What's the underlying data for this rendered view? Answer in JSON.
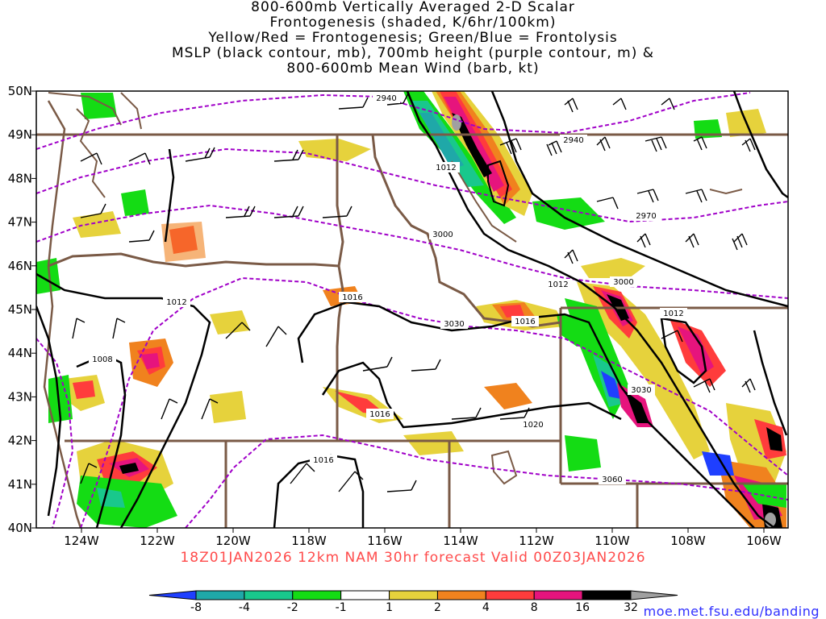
{
  "title_lines": [
    "800-600mb Vertically Averaged 2-D Scalar",
    "Frontogenesis (shaded, K/6hr/100km)",
    "Yellow/Red = Frontogenesis;  Green/Blue = Frontolysis",
    "MSLP (black contour, mb), 700mb height (purple contour, m) &",
    "800-600mb Mean Wind (barb, kt)"
  ],
  "lat_labels": [
    "50N",
    "49N",
    "48N",
    "47N",
    "46N",
    "45N",
    "44N",
    "43N",
    "42N",
    "41N",
    "40N"
  ],
  "lon_labels": [
    "124W",
    "122W",
    "120W",
    "118W",
    "116W",
    "114W",
    "112W",
    "110W",
    "108W",
    "106W"
  ],
  "contour_labels": {
    "mslp": [
      "1012",
      "1012",
      "1012",
      "1008",
      "1016",
      "1016",
      "1016",
      "1016",
      "1020",
      "1012"
    ],
    "height": [
      "2940",
      "2940",
      "2970",
      "3000",
      "3000",
      "3030",
      "3030",
      "3060"
    ]
  },
  "caption": "18Z01JAN2026 12km NAM 30hr forecast Valid 00Z03JAN2026",
  "credit": "moe.met.fsu.edu/banding",
  "colorbar": {
    "labels": [
      "-8",
      "-4",
      "-2",
      "-1",
      "1",
      "2",
      "4",
      "8",
      "16",
      "32"
    ],
    "colors": [
      "#1f3fff",
      "#1fa8a8",
      "#19c88c",
      "#14dc14",
      "#ffffff",
      "#e6d23c",
      "#f0821e",
      "#ff3c3c",
      "#e6147d",
      "#000000",
      "#a0a0a0"
    ]
  },
  "colors": {
    "mslp": "#000000",
    "height": "#a000c8",
    "borders": "#7a5a46",
    "frontogenesis_weak": "#e6d23c",
    "frontogenesis_strong": "#e6147d",
    "frontolysis": "#14dc14"
  }
}
